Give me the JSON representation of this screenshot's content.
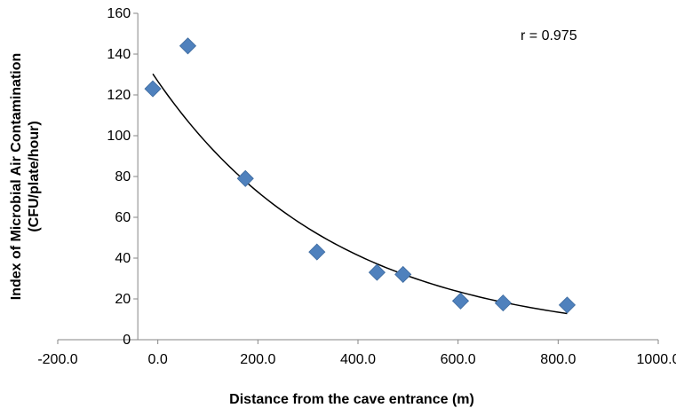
{
  "chart_data": {
    "type": "scatter",
    "xlabel": "Distance from the cave entrance (m)",
    "ylabel_lines": [
      "Index of Microbial Air Contamination",
      "(CFU/plate/hour)"
    ],
    "xlim": [
      -200,
      1000
    ],
    "ylim": [
      0,
      160
    ],
    "x_ticks": [
      -200,
      0,
      200,
      400,
      600,
      800,
      1000
    ],
    "x_tick_labels": [
      "-200.0",
      "0.0",
      "200.0",
      "400.0",
      "600.0",
      "800.0",
      "1000.0"
    ],
    "y_ticks": [
      0,
      20,
      40,
      60,
      80,
      100,
      120,
      140,
      160
    ],
    "y_tick_labels": [
      "0",
      "20",
      "40",
      "60",
      "80",
      "100",
      "120",
      "140",
      "160"
    ],
    "grid": false,
    "series": [
      {
        "x": [
          -10,
          60,
          175,
          318,
          438,
          490,
          605,
          690,
          818
        ],
        "y": [
          123,
          144,
          79,
          43,
          33,
          32,
          19,
          18,
          17
        ],
        "marker": "diamond",
        "color": "#4f81bd"
      }
    ],
    "trendline": {
      "type": "exponential",
      "x_range": [
        -10,
        818
      ],
      "color": "#000000"
    },
    "annotation": "r = 0.975"
  }
}
